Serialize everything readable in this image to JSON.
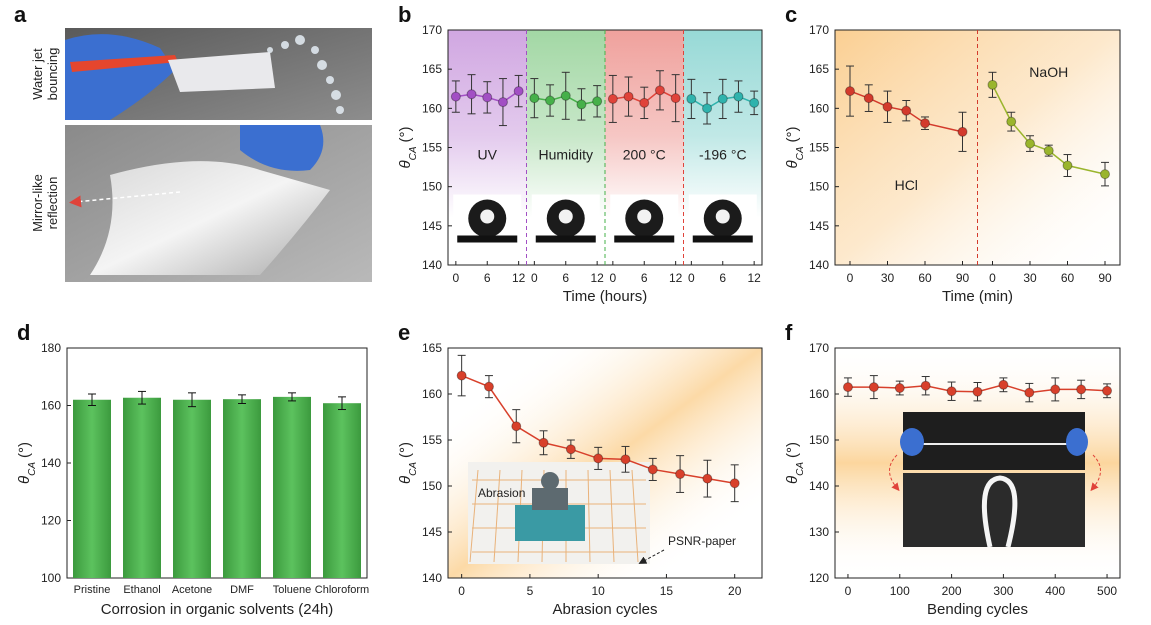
{
  "photo_panel": {
    "label": "a",
    "captions": [
      [
        "Water jet",
        "bouncing"
      ],
      [
        "Mirror-like",
        "reflection"
      ]
    ]
  },
  "chart_data": [
    {
      "label": "b",
      "type": "segmented_line",
      "x_label": "Time (hours)",
      "y_label": {
        "symbol": "θ",
        "subscript": "CA",
        "unit": "(°)"
      },
      "ylim": [
        140,
        170
      ],
      "yticks": [
        140,
        145,
        150,
        155,
        160,
        165,
        170
      ],
      "xlim": [
        -1.5,
        13.5
      ],
      "xticks": [
        0,
        6,
        12
      ],
      "series": [
        {
          "name": "UV",
          "color": "#a24fc4",
          "x": [
            0,
            3,
            6,
            9,
            12
          ],
          "values": [
            161.5,
            161.8,
            161.4,
            160.8,
            162.2
          ],
          "errors": [
            2,
            2.5,
            2,
            3,
            2
          ]
        },
        {
          "name": "Humidity",
          "color": "#46b04a",
          "x": [
            0,
            3,
            6,
            9,
            12
          ],
          "values": [
            161.3,
            161.0,
            161.6,
            160.5,
            160.9
          ],
          "errors": [
            2.5,
            2,
            3,
            2,
            2
          ]
        },
        {
          "name": "200 °C",
          "color": "#e0433a",
          "x": [
            0,
            3,
            6,
            9,
            12
          ],
          "values": [
            161.2,
            161.5,
            160.7,
            162.3,
            161.3
          ],
          "errors": [
            3,
            2.5,
            2,
            2.5,
            3
          ]
        },
        {
          "name": "-196 °C",
          "color": "#2fb3ad",
          "x": [
            0,
            3,
            6,
            9,
            12
          ],
          "values": [
            161.2,
            160.0,
            161.2,
            161.5,
            160.7
          ],
          "errors": [
            2.5,
            2,
            2.5,
            2,
            1.5
          ]
        }
      ]
    },
    {
      "label": "c",
      "type": "segmented_line",
      "x_label": "Time (min)",
      "y_label": {
        "symbol": "θ",
        "subscript": "CA",
        "unit": "(°)"
      },
      "ylim": [
        140,
        170
      ],
      "yticks": [
        140,
        145,
        150,
        155,
        160,
        165,
        170
      ],
      "xlim": [
        -12,
        102
      ],
      "xticks": [
        0,
        30,
        60,
        90
      ],
      "series": [
        {
          "name": "HCl",
          "color": "#d33a2c",
          "x": [
            0,
            15,
            30,
            45,
            60,
            90
          ],
          "values": [
            162.2,
            161.3,
            160.2,
            159.7,
            158.1,
            157.0
          ],
          "errors": [
            3.2,
            1.7,
            2,
            1.3,
            0.8,
            2.5
          ]
        },
        {
          "name": "NaOH",
          "color": "#9ab52d",
          "x": [
            0,
            15,
            30,
            45,
            60,
            90
          ],
          "values": [
            163.0,
            158.3,
            155.5,
            154.6,
            152.7,
            151.6
          ],
          "errors": [
            1.6,
            1.2,
            1,
            0.7,
            1.4,
            1.5
          ]
        }
      ]
    },
    {
      "label": "d",
      "type": "bar",
      "x_label": "Corrosion in organic solvents (24h)",
      "y_label": {
        "symbol": "θ",
        "subscript": "CA",
        "unit": "(°)"
      },
      "ylim": [
        100,
        180
      ],
      "yticks": [
        100,
        120,
        140,
        160,
        180
      ],
      "color": "#4caf50",
      "categories": [
        "Pristine",
        "Ethanol",
        "Acetone",
        "DMF",
        "Toluene",
        "Chloroform"
      ],
      "values": [
        162.0,
        162.7,
        162.0,
        162.2,
        163.0,
        160.8
      ],
      "errors": [
        2,
        2.2,
        2.4,
        1.5,
        1.4,
        2.2
      ]
    },
    {
      "label": "e",
      "type": "line",
      "x_label": "Abrasion cycles",
      "y_label": {
        "symbol": "θ",
        "subscript": "CA",
        "unit": "(°)"
      },
      "ylim": [
        140,
        165
      ],
      "yticks": [
        140,
        145,
        150,
        155,
        160,
        165
      ],
      "xlim": [
        -1,
        22
      ],
      "xticks": [
        0,
        5,
        10,
        15,
        20
      ],
      "color": "#d8402b",
      "x": [
        0,
        2,
        4,
        6,
        8,
        10,
        12,
        14,
        16,
        18,
        20
      ],
      "values": [
        162.0,
        160.8,
        156.5,
        154.7,
        154.0,
        153.0,
        152.9,
        151.8,
        151.3,
        150.8,
        150.3
      ],
      "errors": [
        2.2,
        1.2,
        1.8,
        1.3,
        1,
        1.2,
        1.4,
        1.2,
        2,
        2,
        2
      ],
      "annotations": [
        "Abrasion",
        "PSNR-paper"
      ]
    },
    {
      "label": "f",
      "type": "line",
      "x_label": "Bending cycles",
      "y_label": {
        "symbol": "θ",
        "subscript": "CA",
        "unit": "(°)"
      },
      "ylim": [
        120,
        170
      ],
      "yticks": [
        120,
        130,
        140,
        150,
        160,
        170
      ],
      "xlim": [
        -25,
        525
      ],
      "xticks": [
        0,
        100,
        200,
        300,
        400,
        500
      ],
      "color": "#d8402b",
      "x": [
        0,
        50,
        100,
        150,
        200,
        250,
        300,
        350,
        400,
        450,
        500
      ],
      "values": [
        161.5,
        161.5,
        161.3,
        161.8,
        160.6,
        160.5,
        162.0,
        160.3,
        161.0,
        161.0,
        160.7
      ],
      "errors": [
        2,
        2.5,
        1.5,
        2,
        2,
        2,
        1.5,
        2,
        2.5,
        2,
        1.5
      ]
    }
  ]
}
